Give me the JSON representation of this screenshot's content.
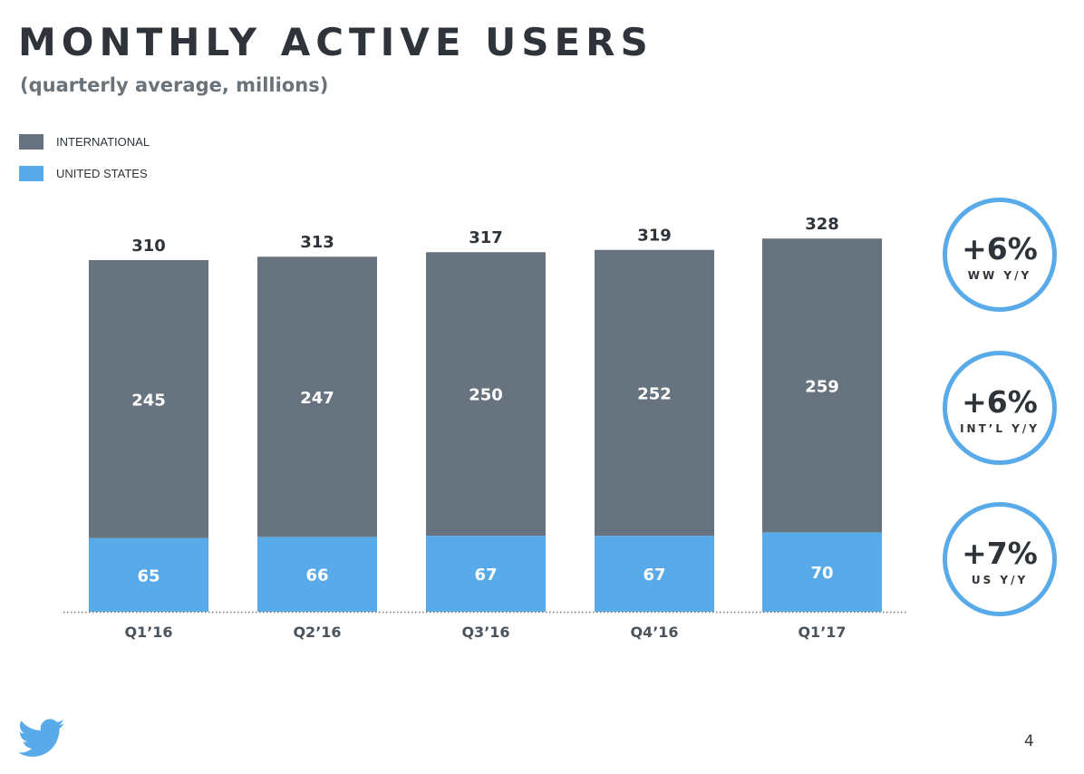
{
  "slide": {
    "title": "MONTHLY ACTIVE USERS",
    "subtitle": "(quarterly average, millions)",
    "page_number": "4",
    "logo_icon": "twitter-bird-icon"
  },
  "colors": {
    "international": "#67747f",
    "united_states": "#58abe8",
    "badge_ring": "#58abe8",
    "text_dark": "#2e3439"
  },
  "legend": [
    {
      "label": "INTERNATIONAL",
      "color": "#67747f"
    },
    {
      "label": "UNITED STATES",
      "color": "#58abe8"
    }
  ],
  "badges": [
    {
      "value": "+6%",
      "label": "WW Y/Y"
    },
    {
      "value": "+6%",
      "label": "INT’L Y/Y"
    },
    {
      "value": "+7%",
      "label": "US Y/Y"
    }
  ],
  "chart_data": {
    "type": "bar",
    "stacked": true,
    "categories": [
      "Q1’16",
      "Q2’16",
      "Q3’16",
      "Q4’16",
      "Q1’17"
    ],
    "series": [
      {
        "name": "UNITED STATES",
        "values": [
          65,
          66,
          67,
          67,
          70
        ],
        "color": "#58abe8"
      },
      {
        "name": "INTERNATIONAL",
        "values": [
          245,
          247,
          250,
          252,
          259
        ],
        "color": "#67747f"
      }
    ],
    "totals": [
      310,
      313,
      317,
      319,
      328
    ],
    "title": "MONTHLY ACTIVE USERS",
    "subtitle": "(quarterly average, millions)",
    "ylim": [
      0,
      340
    ],
    "grid": false,
    "legend": "top-left"
  }
}
